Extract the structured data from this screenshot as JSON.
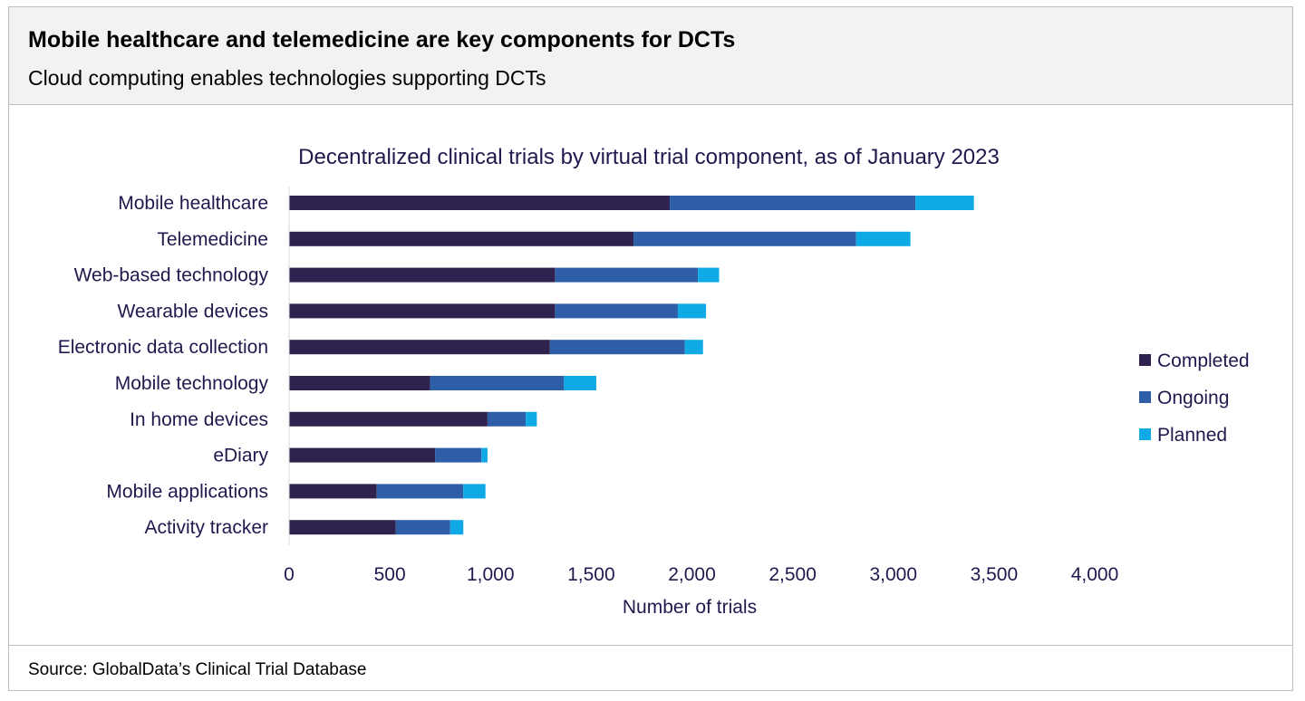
{
  "header": {
    "title": "Mobile healthcare and telemedicine are key components for DCTs",
    "subtitle": "Cloud computing enables  technologies supporting DCTs"
  },
  "footer": {
    "source": "Source: GlobalData’s Clinical Trial Database"
  },
  "colors": {
    "completed": "#30224f",
    "ongoing": "#2f5ea8",
    "planned": "#0fa9e6",
    "text": "#1f1a4e",
    "axis": "#d9d9d9"
  },
  "chart_data": {
    "type": "bar",
    "orientation": "horizontal",
    "stacked": true,
    "title": "Decentralized clinical trials by virtual trial component, as of January 2023",
    "xlabel": "Number of trials",
    "ylabel": "",
    "xlim": [
      0,
      4000
    ],
    "xticks": [
      0,
      500,
      1000,
      1500,
      2000,
      2500,
      3000,
      3500,
      4000
    ],
    "xtick_labels": [
      "0",
      "500",
      "1,000",
      "1,500",
      "2,000",
      "2,500",
      "3,000",
      "3,500",
      "4,000"
    ],
    "grid": false,
    "legend_position": "right",
    "categories": [
      "Mobile healthcare",
      "Telemedicine",
      "Web-based technology",
      "Wearable devices",
      "Electronic data collection",
      "Mobile technology",
      "In home devices",
      "eDiary",
      "Mobile applications",
      "Activity tracker"
    ],
    "series": [
      {
        "name": "Completed",
        "color": "#30224f",
        "values": [
          1890,
          1710,
          1320,
          1320,
          1295,
          700,
          985,
          725,
          435,
          530
        ]
      },
      {
        "name": "Ongoing",
        "color": "#2f5ea8",
        "values": [
          1220,
          1105,
          710,
          610,
          670,
          665,
          190,
          230,
          430,
          270
        ]
      },
      {
        "name": "Planned",
        "color": "#0fa9e6",
        "values": [
          290,
          270,
          105,
          140,
          90,
          160,
          55,
          30,
          110,
          65
        ]
      }
    ]
  }
}
